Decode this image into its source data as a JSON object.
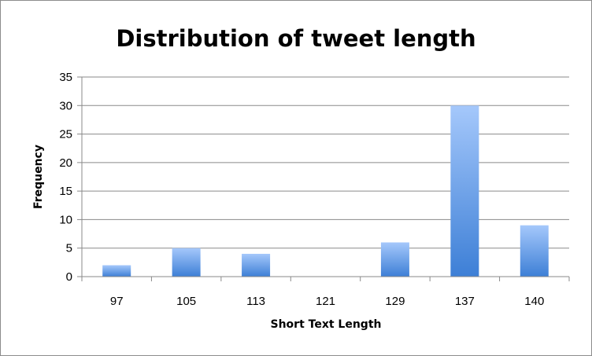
{
  "chart_data": {
    "type": "bar",
    "title": "Distribution of tweet length",
    "xlabel": "Short Text Length",
    "ylabel": "Frequency",
    "categories": [
      "97",
      "105",
      "113",
      "121",
      "129",
      "137",
      "140"
    ],
    "values": [
      2,
      5,
      4,
      0,
      6,
      30,
      9
    ],
    "ylim": [
      0,
      35
    ],
    "yticks": [
      "0",
      "5",
      "10",
      "15",
      "20",
      "25",
      "30",
      "35"
    ],
    "grid": true,
    "legend": "none",
    "colors": {
      "bar_top": "#a5c8fb",
      "bar_bottom": "#3d7fd6",
      "gridline": "#8a8a8a",
      "axis": "#8a8a8a"
    }
  }
}
